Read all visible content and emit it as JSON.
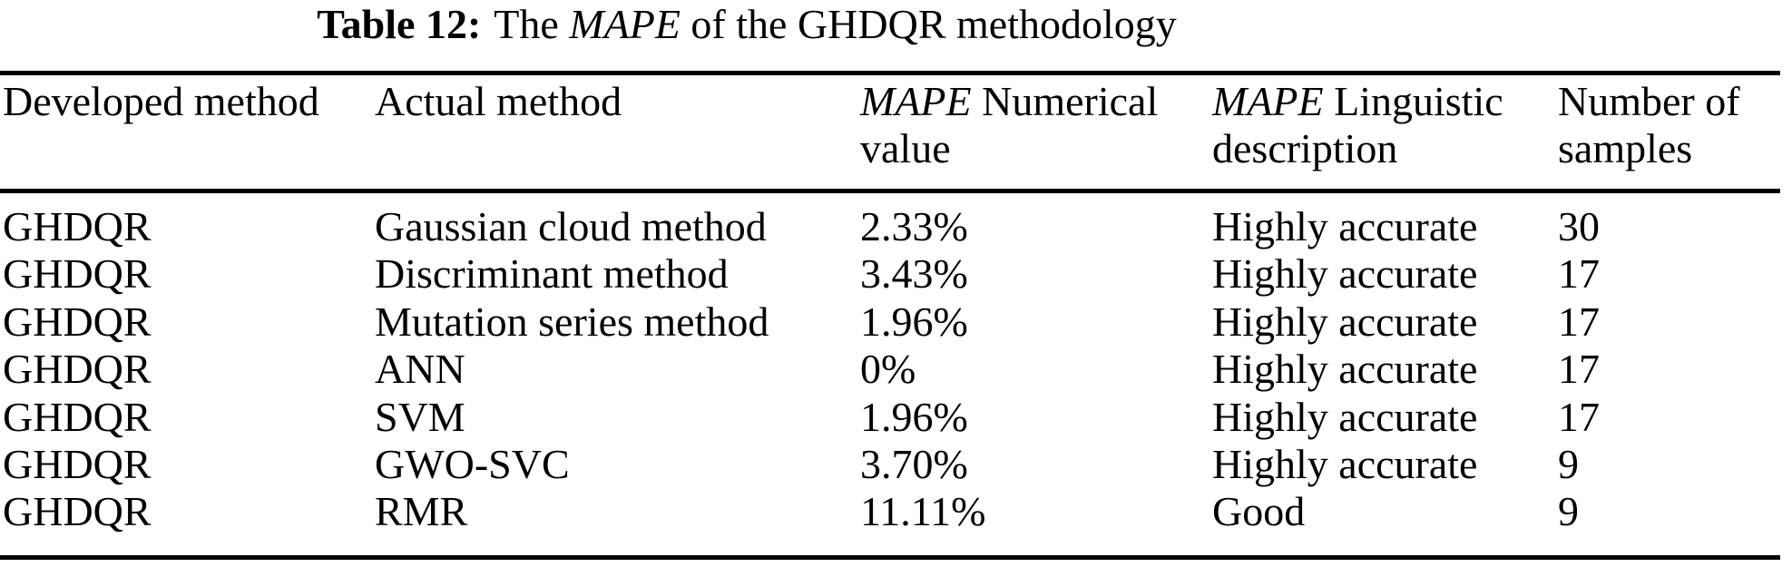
{
  "page": {
    "background": "#ffffff",
    "text_color": "#000000"
  },
  "caption": {
    "label": "Table 12:",
    "pre_italic": "The ",
    "italic_term": "MAPE",
    "post_italic": " of the GHDQR methodology"
  },
  "table": {
    "headers": {
      "developed": "Developed method",
      "actual": "Actual method",
      "mape_numerical_italic": "MAPE",
      "mape_numerical_rest": " Numerical value",
      "mape_linguistic_italic": "MAPE",
      "mape_linguistic_rest": " Linguistic description",
      "samples": "Number of samples"
    },
    "rows": [
      {
        "developed": "GHDQR",
        "actual": "Gaussian cloud method",
        "mape_value": "2.33%",
        "mape_desc": "Highly accurate",
        "samples": "30"
      },
      {
        "developed": "GHDQR",
        "actual": "Discriminant method",
        "mape_value": "3.43%",
        "mape_desc": "Highly accurate",
        "samples": "17"
      },
      {
        "developed": "GHDQR",
        "actual": "Mutation series method",
        "mape_value": "1.96%",
        "mape_desc": "Highly accurate",
        "samples": "17"
      },
      {
        "developed": "GHDQR",
        "actual": "ANN",
        "mape_value": "0%",
        "mape_desc": "Highly accurate",
        "samples": "17"
      },
      {
        "developed": "GHDQR",
        "actual": "SVM",
        "mape_value": "1.96%",
        "mape_desc": "Highly accurate",
        "samples": "17"
      },
      {
        "developed": "GHDQR",
        "actual": "GWO-SVC",
        "mape_value": "3.70%",
        "mape_desc": "Highly accurate",
        "samples": "9"
      },
      {
        "developed": "GHDQR",
        "actual": "RMR",
        "mape_value": "11.11%",
        "mape_desc": "Good",
        "samples": "9"
      }
    ]
  }
}
